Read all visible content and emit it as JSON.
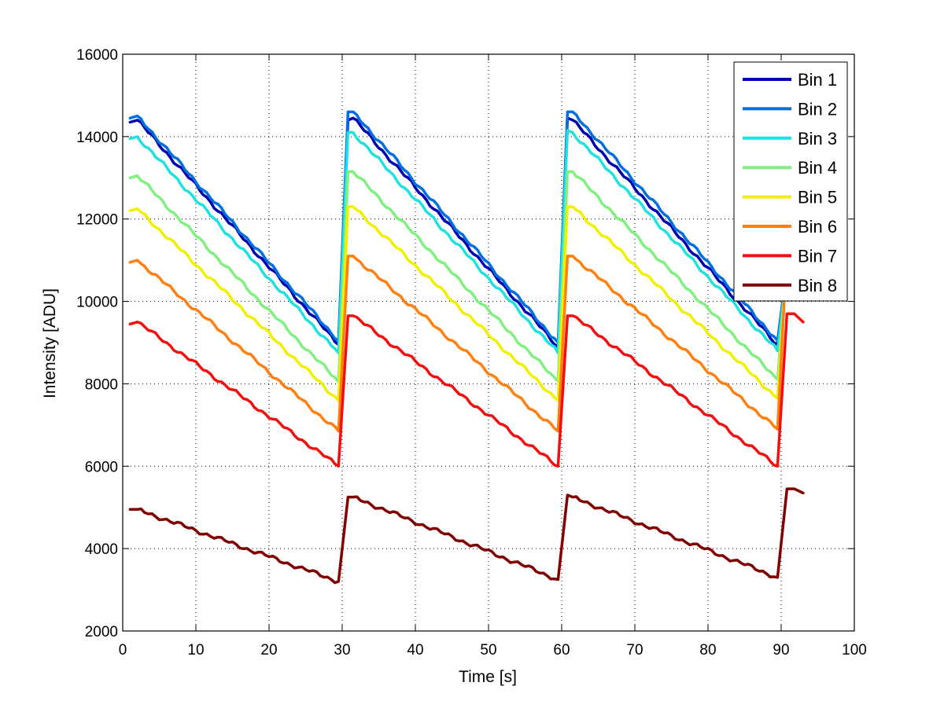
{
  "chart_data": {
    "type": "line",
    "title": "",
    "xlabel": "Time [s]",
    "ylabel": "Intensity [ADU]",
    "xlim": [
      0,
      100
    ],
    "ylim": [
      2000,
      16000
    ],
    "xticks": [
      0,
      10,
      20,
      30,
      40,
      50,
      60,
      70,
      80,
      90,
      100
    ],
    "yticks": [
      2000,
      4000,
      6000,
      8000,
      10000,
      12000,
      14000,
      16000
    ],
    "xtick_labels": [
      "0",
      "10",
      "20",
      "30",
      "40",
      "50",
      "60",
      "70",
      "80",
      "90",
      "100"
    ],
    "ytick_labels": [
      "2000",
      "4000",
      "6000",
      "8000",
      "10000",
      "12000",
      "14000",
      "16000"
    ],
    "grid": true,
    "legend_position": "top-right",
    "series": [
      {
        "name": "Bin 1",
        "color": "#0000b0",
        "x": [
          1,
          2,
          29.5,
          30.8,
          31.5,
          59.5,
          60.8,
          61.5,
          89.5,
          90.5
        ],
        "y": [
          14350,
          14400,
          8950,
          14400,
          14450,
          8900,
          14450,
          14400,
          8950,
          10200
        ]
      },
      {
        "name": "Bin 2",
        "color": "#0070e0",
        "x": [
          1,
          2,
          29.5,
          30.8,
          31.5,
          59.5,
          60.8,
          61.5,
          89.5,
          90.5
        ],
        "y": [
          14450,
          14500,
          9050,
          14600,
          14600,
          9000,
          14600,
          14600,
          9050,
          10400
        ]
      },
      {
        "name": "Bin 3",
        "color": "#20e0e0",
        "x": [
          1,
          2,
          29.5,
          30.8,
          31.5,
          59.5,
          60.8,
          61.5,
          89.5,
          90.5
        ],
        "y": [
          13950,
          14000,
          8750,
          14100,
          14100,
          8750,
          14150,
          14100,
          8800,
          10300
        ]
      },
      {
        "name": "Bin 4",
        "color": "#80f080",
        "x": [
          1,
          2,
          29.5,
          30.8,
          31.5,
          59.5,
          60.8,
          61.5,
          89.5,
          90.5
        ],
        "y": [
          13000,
          13050,
          8050,
          13150,
          13150,
          8050,
          13150,
          13150,
          8100,
          10300
        ]
      },
      {
        "name": "Bin 5",
        "color": "#f0f000",
        "x": [
          1,
          2,
          29.5,
          30.8,
          31.5,
          59.5,
          60.8,
          61.5,
          89.5,
          90.5
        ],
        "y": [
          12200,
          12250,
          7600,
          12300,
          12300,
          7600,
          12300,
          12300,
          7650,
          10300
        ]
      },
      {
        "name": "Bin 6",
        "color": "#ff8010",
        "x": [
          1,
          2,
          29.5,
          30.8,
          31.5,
          59.5,
          60.8,
          61.5,
          89.5,
          90.5
        ],
        "y": [
          10950,
          11000,
          6850,
          11100,
          11100,
          6850,
          11100,
          11100,
          6900,
          10300
        ]
      },
      {
        "name": "Bin 7",
        "color": "#f01010",
        "x": [
          1,
          2,
          29.5,
          30.8,
          31.5,
          59.5,
          60.8,
          61.5,
          89.5,
          90.8,
          91.8,
          93
        ],
        "y": [
          9450,
          9500,
          6000,
          9650,
          9650,
          6000,
          9650,
          9650,
          6000,
          9700,
          9700,
          9500
        ]
      },
      {
        "name": "Bin 8",
        "color": "#800000",
        "x": [
          1,
          2,
          29.5,
          30.8,
          31.5,
          59.5,
          60.8,
          61.5,
          89.5,
          90.8,
          91.8,
          93
        ],
        "y": [
          4950,
          4950,
          3200,
          5250,
          5250,
          3250,
          5300,
          5250,
          3300,
          5450,
          5450,
          5350
        ]
      }
    ]
  }
}
